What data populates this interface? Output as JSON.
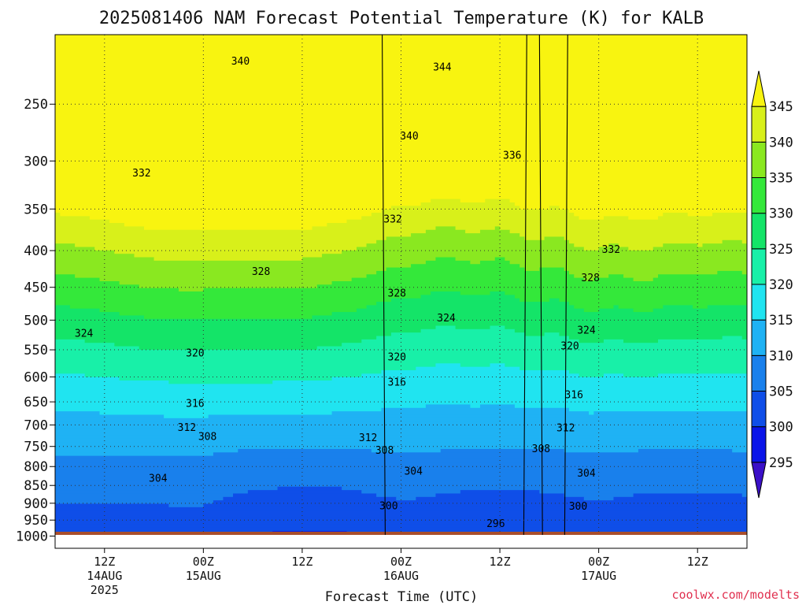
{
  "chart_data": {
    "type": "heatmap",
    "title": "2025081406 NAM Forecast Potential Temperature (K) for KALB",
    "xlabel": "Forecast Time (UTC)",
    "ylabel": "",
    "y_scale": "log-pressure",
    "y_reversed": true,
    "ylim": [
      1000,
      200
    ],
    "y_ticks": [
      250,
      300,
      350,
      400,
      450,
      500,
      550,
      600,
      650,
      700,
      750,
      800,
      850,
      900,
      950,
      1000
    ],
    "x_ticks": [
      {
        "hour": 6,
        "label": "12Z",
        "sub": "14AUG",
        "sub2": "2025"
      },
      {
        "hour": 18,
        "label": "00Z",
        "sub": "15AUG",
        "sub2": ""
      },
      {
        "hour": 30,
        "label": "12Z",
        "sub": "",
        "sub2": ""
      },
      {
        "hour": 42,
        "label": "00Z",
        "sub": "16AUG",
        "sub2": ""
      },
      {
        "hour": 54,
        "label": "12Z",
        "sub": "",
        "sub2": ""
      },
      {
        "hour": 66,
        "label": "00Z",
        "sub": "17AUG",
        "sub2": ""
      },
      {
        "hour": 78,
        "label": "12Z",
        "sub": "",
        "sub2": ""
      }
    ],
    "xlim": [
      0,
      84
    ],
    "grid": true,
    "colorbar": {
      "levels": [
        "295",
        "300",
        "305",
        "310",
        "315",
        "320",
        "325",
        "330",
        "335",
        "340",
        "345"
      ],
      "colors": [
        "#3b10c8",
        "#0a14e8",
        "#0f4ee8",
        "#1980ec",
        "#1fb2f4",
        "#20e4f0",
        "#18f0a8",
        "#14e468",
        "#34e83a",
        "#8ae820",
        "#d8f01a",
        "#f8f410"
      ]
    },
    "contour_labels": [
      {
        "hour": 22.5,
        "p": 218,
        "text": "340"
      },
      {
        "hour": 47,
        "p": 222,
        "text": "344"
      },
      {
        "hour": 43,
        "p": 277,
        "text": "340"
      },
      {
        "hour": 55.5,
        "p": 295,
        "text": "336"
      },
      {
        "hour": 10.5,
        "p": 312,
        "text": "332"
      },
      {
        "hour": 41,
        "p": 362,
        "text": "332"
      },
      {
        "hour": 67.5,
        "p": 399,
        "text": "332"
      },
      {
        "hour": 25,
        "p": 428,
        "text": "328"
      },
      {
        "hour": 41.5,
        "p": 459,
        "text": "328"
      },
      {
        "hour": 65,
        "p": 437,
        "text": "328"
      },
      {
        "hour": 3.5,
        "p": 522,
        "text": "324"
      },
      {
        "hour": 47.5,
        "p": 497,
        "text": "324"
      },
      {
        "hour": 64.5,
        "p": 517,
        "text": "324"
      },
      {
        "hour": 17,
        "p": 556,
        "text": "320"
      },
      {
        "hour": 41.5,
        "p": 563,
        "text": "320"
      },
      {
        "hour": 62.5,
        "p": 544,
        "text": "320"
      },
      {
        "hour": 41.5,
        "p": 611,
        "text": "316"
      },
      {
        "hour": 17,
        "p": 654,
        "text": "316"
      },
      {
        "hour": 63,
        "p": 636,
        "text": "316"
      },
      {
        "hour": 16,
        "p": 706,
        "text": "312"
      },
      {
        "hour": 38,
        "p": 730,
        "text": "312"
      },
      {
        "hour": 62,
        "p": 707,
        "text": "312"
      },
      {
        "hour": 18.5,
        "p": 727,
        "text": "308"
      },
      {
        "hour": 40,
        "p": 760,
        "text": "308"
      },
      {
        "hour": 59,
        "p": 756,
        "text": "308"
      },
      {
        "hour": 12.5,
        "p": 831,
        "text": "304"
      },
      {
        "hour": 43.5,
        "p": 813,
        "text": "304"
      },
      {
        "hour": 64.5,
        "p": 818,
        "text": "304"
      },
      {
        "hour": 40.5,
        "p": 908,
        "text": "300"
      },
      {
        "hour": 63.5,
        "p": 910,
        "text": "300"
      },
      {
        "hour": 53.5,
        "p": 962,
        "text": "296"
      }
    ]
  },
  "credit": "coolwx.com/modelts"
}
